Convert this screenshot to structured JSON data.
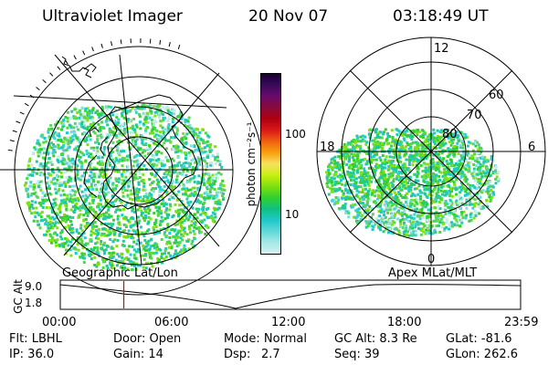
{
  "header": {
    "instrument": "Ultraviolet Imager",
    "date": "20 Nov 07",
    "time": "03:18:49 UT"
  },
  "colorbar": {
    "unit_label": "photon cm⁻²s⁻¹",
    "ticks": [
      "100",
      "10"
    ],
    "colors": [
      "#1a0033",
      "#3a0a5a",
      "#6a0a6a",
      "#8a0a3a",
      "#b00010",
      "#d81818",
      "#f06010",
      "#f8a010",
      "#f8e060",
      "#c8f010",
      "#80e010",
      "#30d030",
      "#10c080",
      "#20c8c8",
      "#60d8d8",
      "#a8e8e8",
      "#d8f0f0"
    ]
  },
  "left_panel": {
    "caption": "Geographic Lat/Lon"
  },
  "right_panel": {
    "caption": "Apex MLat/MLT",
    "mlt_labels": {
      "top": "12",
      "left": "18",
      "right": "6",
      "bottom": "0"
    },
    "mlat_labels": [
      "60",
      "70",
      "80"
    ]
  },
  "timeline": {
    "ylabel": "GC Alt",
    "yticks": [
      "9.0",
      "1.8"
    ],
    "xticks": [
      "00:00",
      "06:00",
      "12:00",
      "18:00",
      "23:59"
    ],
    "current_fraction": 0.138
  },
  "status": {
    "flt": "Flt: LBHL",
    "door": "Door: Open",
    "mode": "Mode: Normal",
    "gc_alt": "GC Alt: 8.3 Re",
    "glat": "GLat: -81.6",
    "ip": "IP: 36.0",
    "gain": "Gain: 14",
    "dsp_label": "Dsp:",
    "dsp_value": "2.7",
    "seq": "Seq: 39",
    "glon": "GLon: 262.6"
  }
}
